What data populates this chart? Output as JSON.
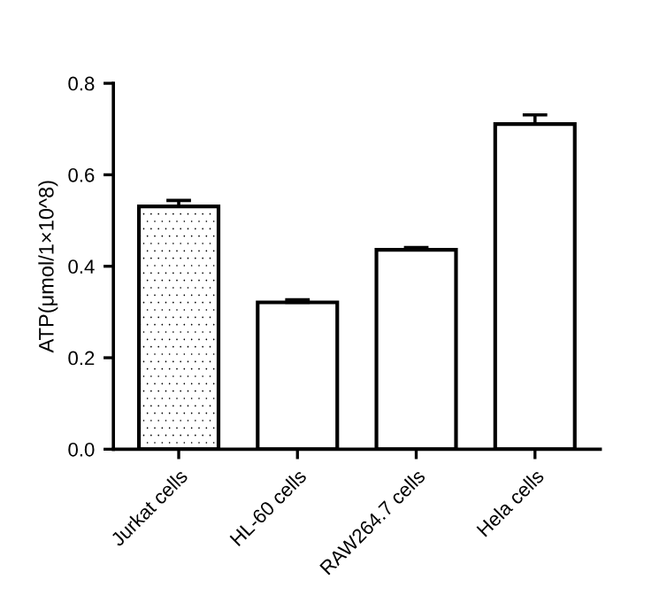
{
  "chart_data": {
    "type": "bar",
    "ylabel": "ATP(μmol/1×10^8)",
    "categories": [
      "Jurkat cells",
      "HL-60 cells",
      "RAW264.7 cells",
      "Hela cells"
    ],
    "values": [
      0.531,
      0.321,
      0.436,
      0.711
    ],
    "errors": [
      0.013,
      0.006,
      0.005,
      0.02
    ],
    "color": "#ffffff",
    "ylim": [
      0,
      0.8
    ],
    "yticks": [
      {
        "value": 0,
        "label": "0.0"
      },
      0.2,
      0.4,
      0.6,
      0.8
    ],
    "grid": false,
    "legend": false
  }
}
